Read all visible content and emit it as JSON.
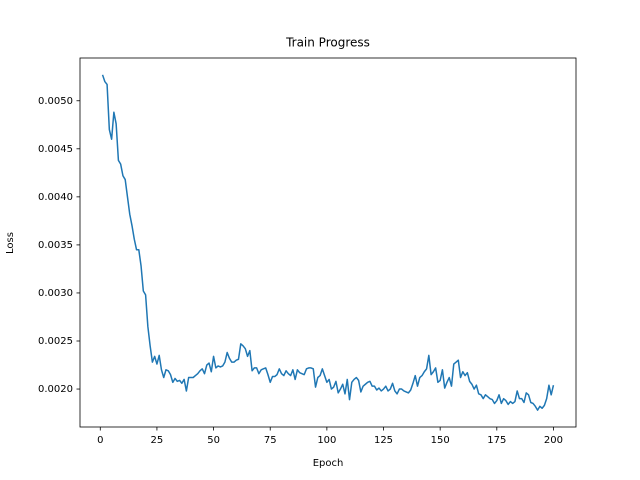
{
  "chart_data": {
    "type": "line",
    "title": "Train Progress",
    "xlabel": "Epoch",
    "ylabel": "Loss",
    "color": "#1f77b4",
    "grid": false,
    "xlim": [
      -8.95,
      209.95
    ],
    "ylim": [
      0.001605,
      0.005445
    ],
    "xticks": [
      0,
      25,
      50,
      75,
      100,
      125,
      150,
      175,
      200
    ],
    "yticks": [
      {
        "value": 0.002,
        "label": "0.0020"
      },
      0.0025,
      {
        "value": 0.003,
        "label": "0.0030"
      },
      0.0035,
      {
        "value": 0.004,
        "label": "0.0040"
      },
      0.0045,
      {
        "value": 0.005,
        "label": "0.0050"
      }
    ],
    "x": [
      1,
      2,
      3,
      4,
      5,
      6,
      7,
      8,
      9,
      10,
      11,
      12,
      13,
      14,
      15,
      16,
      17,
      18,
      19,
      20,
      21,
      22,
      23,
      24,
      25,
      26,
      27,
      28,
      29,
      30,
      31,
      32,
      33,
      34,
      35,
      36,
      37,
      38,
      39,
      40,
      41,
      42,
      43,
      44,
      45,
      46,
      47,
      48,
      49,
      50,
      51,
      52,
      53,
      54,
      55,
      56,
      57,
      58,
      59,
      60,
      61,
      62,
      63,
      64,
      65,
      66,
      67,
      68,
      69,
      70,
      71,
      72,
      73,
      74,
      75,
      76,
      77,
      78,
      79,
      80,
      81,
      82,
      83,
      84,
      85,
      86,
      87,
      88,
      89,
      90,
      91,
      92,
      93,
      94,
      95,
      96,
      97,
      98,
      99,
      100,
      101,
      102,
      103,
      104,
      105,
      106,
      107,
      108,
      109,
      110,
      111,
      112,
      113,
      114,
      115,
      116,
      117,
      118,
      119,
      120,
      121,
      122,
      123,
      124,
      125,
      126,
      127,
      128,
      129,
      130,
      131,
      132,
      133,
      134,
      135,
      136,
      137,
      138,
      139,
      140,
      141,
      142,
      143,
      144,
      145,
      146,
      147,
      148,
      149,
      150,
      151,
      152,
      153,
      154,
      155,
      156,
      157,
      158,
      159,
      160,
      161,
      162,
      163,
      164,
      165,
      166,
      167,
      168,
      169,
      170,
      171,
      172,
      173,
      174,
      175,
      176,
      177,
      178,
      179,
      180,
      181,
      182,
      183,
      184,
      185,
      186,
      187,
      188,
      189,
      190,
      191,
      192,
      193,
      194,
      195,
      196,
      197,
      198,
      199,
      200
    ],
    "values": [
      0.00527,
      0.0052,
      0.00517,
      0.0047,
      0.0046,
      0.00488,
      0.00476,
      0.00438,
      0.00434,
      0.00422,
      0.00418,
      0.004,
      0.00382,
      0.0037,
      0.00356,
      0.00345,
      0.00345,
      0.00328,
      0.00302,
      0.00298,
      0.00265,
      0.00245,
      0.00228,
      0.00234,
      0.00226,
      0.00235,
      0.0022,
      0.00212,
      0.0022,
      0.00219,
      0.00215,
      0.00207,
      0.00211,
      0.00208,
      0.00209,
      0.00206,
      0.0021,
      0.00198,
      0.00212,
      0.00212,
      0.00212,
      0.00214,
      0.00216,
      0.00219,
      0.00221,
      0.00216,
      0.00225,
      0.00227,
      0.00218,
      0.00234,
      0.00222,
      0.00224,
      0.00223,
      0.00224,
      0.00228,
      0.00238,
      0.00232,
      0.00228,
      0.00228,
      0.0023,
      0.00231,
      0.00247,
      0.00245,
      0.00242,
      0.00234,
      0.0024,
      0.00219,
      0.00222,
      0.00222,
      0.00216,
      0.0022,
      0.00221,
      0.00222,
      0.00215,
      0.00207,
      0.00213,
      0.00213,
      0.00215,
      0.00221,
      0.00216,
      0.00214,
      0.00219,
      0.00216,
      0.00214,
      0.0022,
      0.0021,
      0.0022,
      0.00217,
      0.00216,
      0.00215,
      0.00221,
      0.00222,
      0.00222,
      0.00221,
      0.00202,
      0.00212,
      0.00214,
      0.00221,
      0.00214,
      0.00207,
      0.0021,
      0.002,
      0.00202,
      0.00208,
      0.00196,
      0.002,
      0.00205,
      0.00195,
      0.0021,
      0.00189,
      0.00207,
      0.0021,
      0.00212,
      0.00209,
      0.00197,
      0.00203,
      0.00205,
      0.00207,
      0.00208,
      0.00203,
      0.00203,
      0.00199,
      0.00201,
      0.00198,
      0.002,
      0.00203,
      0.00198,
      0.002,
      0.00206,
      0.00198,
      0.00195,
      0.002,
      0.002,
      0.00198,
      0.00197,
      0.00196,
      0.00199,
      0.00206,
      0.00214,
      0.00203,
      0.00212,
      0.00214,
      0.00218,
      0.00221,
      0.00235,
      0.00215,
      0.00218,
      0.00222,
      0.00207,
      0.00209,
      0.0022,
      0.00201,
      0.00207,
      0.00212,
      0.00203,
      0.00226,
      0.00228,
      0.0023,
      0.00212,
      0.00218,
      0.00214,
      0.00217,
      0.00208,
      0.00205,
      0.002,
      0.00204,
      0.00195,
      0.00194,
      0.0019,
      0.00194,
      0.00192,
      0.0019,
      0.00189,
      0.00185,
      0.00188,
      0.00194,
      0.00185,
      0.0019,
      0.00188,
      0.00184,
      0.00187,
      0.00185,
      0.00187,
      0.00198,
      0.0019,
      0.0019,
      0.00186,
      0.00196,
      0.00194,
      0.00186,
      0.00185,
      0.00182,
      0.00178,
      0.00182,
      0.0018,
      0.00183,
      0.0019,
      0.00204,
      0.00194,
      0.00204
    ]
  }
}
